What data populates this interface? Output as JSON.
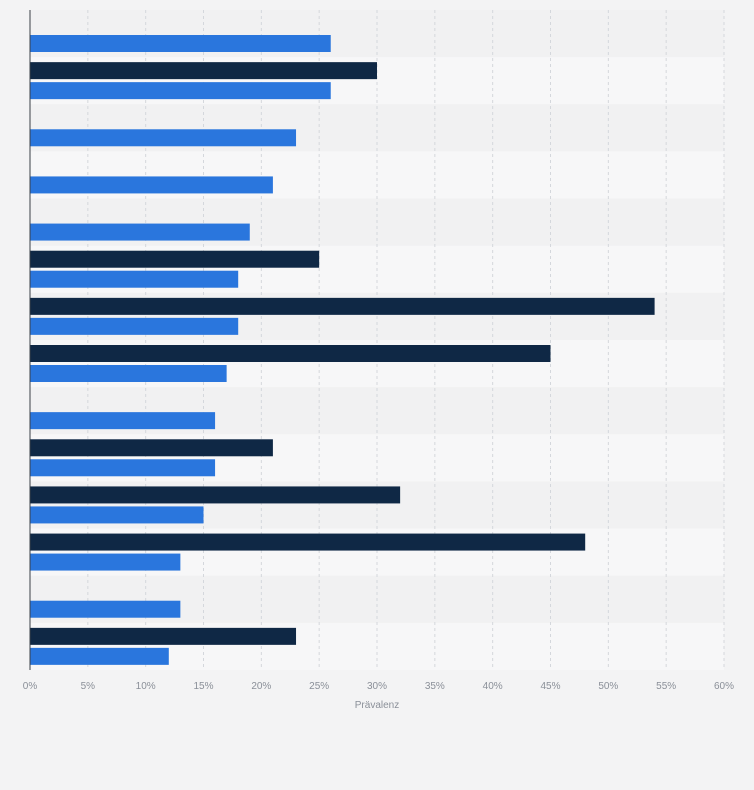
{
  "chart_data": {
    "type": "bar",
    "orientation": "horizontal",
    "title": "",
    "xlabel": "Prävalenz",
    "ylabel": "",
    "xlim": [
      0,
      60
    ],
    "x_ticks": [
      0,
      5,
      10,
      15,
      20,
      25,
      30,
      35,
      40,
      45,
      50,
      55,
      60
    ],
    "x_tick_labels": [
      "0%",
      "5%",
      "10%",
      "15%",
      "20%",
      "25%",
      "30%",
      "35%",
      "40%",
      "45%",
      "50%",
      "55%",
      "60%"
    ],
    "grid": true,
    "categories": [
      "",
      "",
      "",
      "",
      "",
      "",
      "",
      "",
      "",
      "",
      "",
      "",
      "",
      ""
    ],
    "series": [
      {
        "color": "#0f2845",
        "values": [
          null,
          30,
          null,
          null,
          null,
          25,
          54,
          45,
          null,
          21,
          32,
          48,
          null,
          23
        ]
      },
      {
        "color": "#2a76dd",
        "values": [
          26,
          26,
          23,
          21,
          19,
          18,
          18,
          17,
          16,
          16,
          15,
          13,
          13,
          12
        ]
      }
    ]
  }
}
